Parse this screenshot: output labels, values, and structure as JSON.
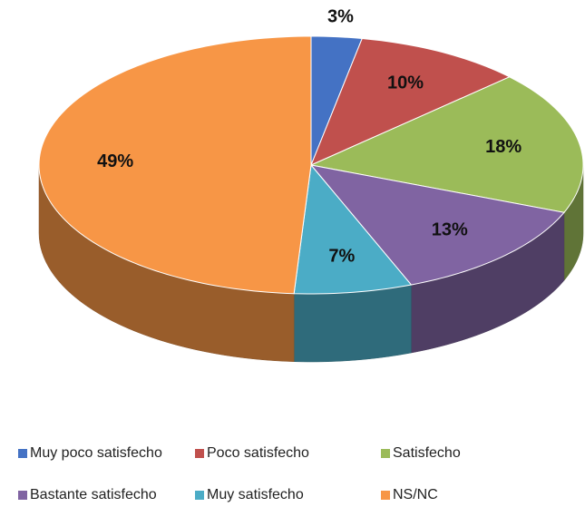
{
  "chart_data": {
    "type": "pie",
    "categories": [
      "Muy poco satisfecho",
      "Poco satisfecho",
      "Satisfecho",
      "Bastante satisfecho",
      "Muy satisfecho",
      "NS/NC"
    ],
    "values": [
      3,
      10,
      18,
      13,
      7,
      49
    ],
    "value_labels": [
      "3%",
      "10%",
      "18%",
      "13%",
      "7%",
      "49%"
    ],
    "colors": [
      "#4472c4",
      "#c0504d",
      "#9bbb59",
      "#8064a2",
      "#4bacc6",
      "#f79646"
    ],
    "legend": "bottom"
  }
}
